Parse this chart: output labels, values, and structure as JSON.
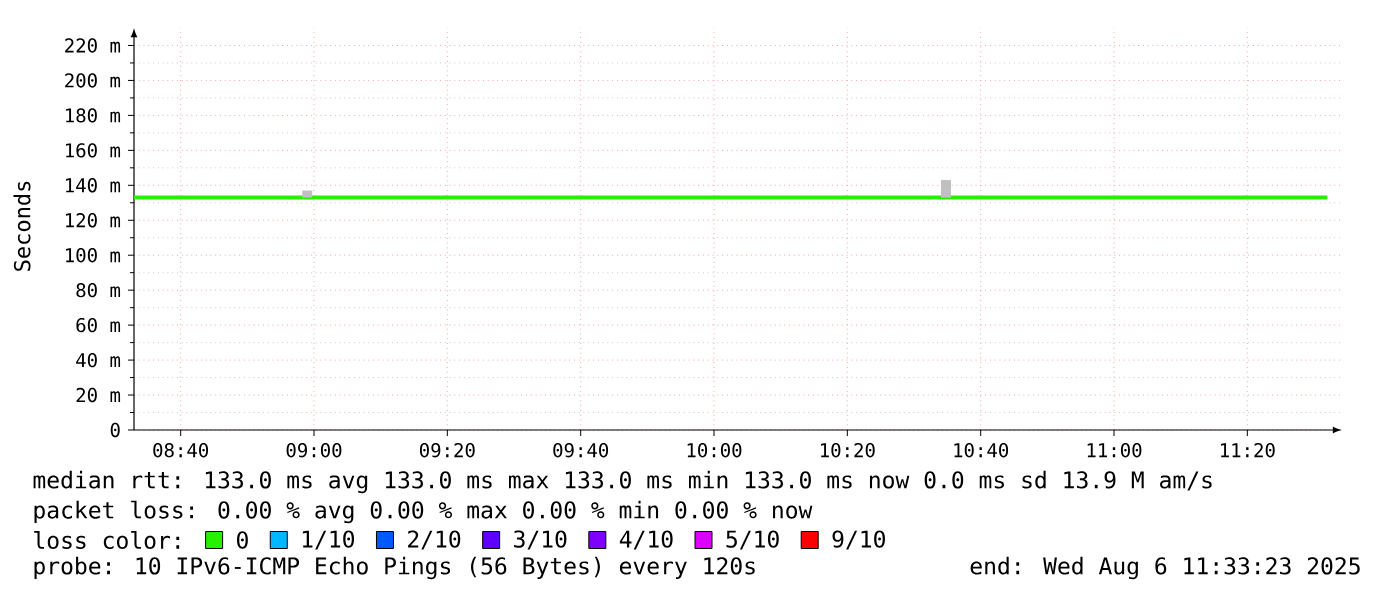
{
  "chart_data": {
    "type": "line",
    "ylabel": "Seconds",
    "x": [
      8.55,
      11.5333
    ],
    "xlim": [
      8.55,
      11.57
    ],
    "xticks": [
      {
        "value": 8.6667,
        "label": "08:40"
      },
      {
        "value": 9,
        "label": "09:00"
      },
      {
        "value": 9.3333,
        "label": "09:20"
      },
      {
        "value": 9.6667,
        "label": "09:40"
      },
      {
        "value": 10,
        "label": "10:00"
      },
      {
        "value": 10.3333,
        "label": "10:20"
      },
      {
        "value": 10.6667,
        "label": "10:40"
      },
      {
        "value": 11,
        "label": "11:00"
      },
      {
        "value": 11.3333,
        "label": "11:20"
      }
    ],
    "ylim": [
      0,
      230
    ],
    "yticks": [
      0,
      {
        "value": 20,
        "label": "20 m"
      },
      {
        "value": 40,
        "label": "40 m"
      },
      {
        "value": 60,
        "label": "60 m"
      },
      {
        "value": 80,
        "label": "80 m"
      },
      {
        "value": 100,
        "label": "100 m"
      },
      {
        "value": 120,
        "label": "120 m"
      },
      {
        "value": 140,
        "label": "140 m"
      },
      {
        "value": 160,
        "label": "160 m"
      },
      {
        "value": 180,
        "label": "180 m"
      },
      {
        "value": 200,
        "label": "200 m"
      },
      {
        "value": 220,
        "label": "220 m"
      }
    ],
    "grid": true,
    "legend": "bottom",
    "legend_title": "loss color:",
    "series": [
      {
        "name": "0",
        "color": "#26f000",
        "values": [
          133,
          133
        ]
      },
      {
        "name": "1/10",
        "color": "#00b8ff",
        "values": [
          null,
          null
        ]
      },
      {
        "name": "2/10",
        "color": "#0059ff",
        "values": [
          null,
          null
        ]
      },
      {
        "name": "3/10",
        "color": "#5e00ff",
        "values": [
          null,
          null
        ]
      },
      {
        "name": "4/10",
        "color": "#7e00ff",
        "values": [
          null,
          null
        ]
      },
      {
        "name": "5/10",
        "color": "#dd00ff",
        "values": [
          null,
          null
        ]
      },
      {
        "name": "9/10",
        "color": "#ff0000",
        "values": [
          null,
          null
        ]
      },
      {
        "type": "bar",
        "color": "#c0c0c0",
        "x": [
          8.983,
          10.58
        ],
        "base": [
          133,
          133
        ],
        "values": [
          4,
          10
        ]
      }
    ],
    "annotations": [
      "median rtt:  133.0 ms avg  133.0 ms max  133.0 ms min  133.0 ms now  0.0 ms sd  13.9 M am/s",
      "packet loss: 0.00 % avg  0.00 % max  0.00 % min  0.00 % now",
      "probe:       10 IPv6-ICMP Echo Pings (56 Bytes) every 120s",
      "end: Wed Aug  6 11:33:23 2025"
    ]
  }
}
